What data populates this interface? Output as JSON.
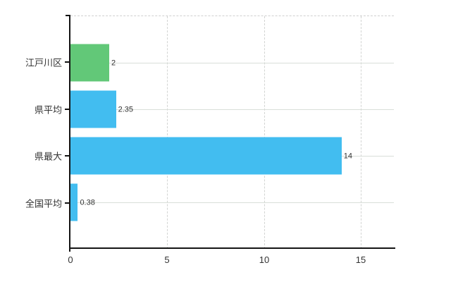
{
  "chart_data": {
    "type": "bar",
    "orientation": "horizontal",
    "title": "",
    "xlabel": "",
    "ylabel": "",
    "categories": [
      "江戸川区",
      "県平均",
      "県最大",
      "全国平均"
    ],
    "values": [
      2,
      2.35,
      14,
      0.38
    ],
    "value_labels": [
      "2",
      "2.35",
      "14",
      "0.38"
    ],
    "bar_colors": [
      "#62c878",
      "#42bdf0",
      "#42bdf0",
      "#42bdf0"
    ],
    "x_ticks": [
      "0",
      "5",
      "10",
      "15"
    ],
    "x_tick_values": [
      0,
      5,
      10,
      15
    ],
    "xlim": [
      0,
      16.7
    ],
    "grid": true,
    "legend": false,
    "colors": {
      "green_bar": "#62c878",
      "blue_bar": "#42bdf0",
      "axis": "#141414",
      "text": "#333333",
      "hgrid": "#d9ded9",
      "vgrid_dashed": "#d2d4d2"
    }
  }
}
